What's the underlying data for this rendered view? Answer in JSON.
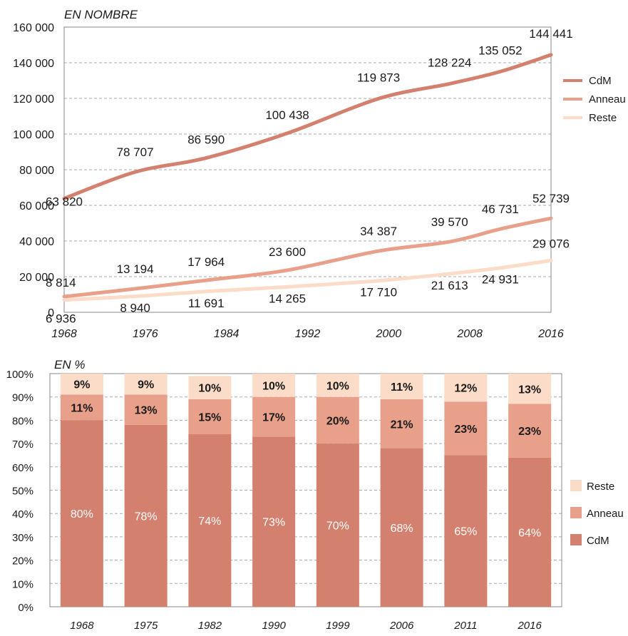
{
  "colors": {
    "cdm": "#D4806F",
    "anneau": "#E9A08A",
    "reste": "#FBDCC9",
    "grid": "#aaaaaa",
    "axis": "#888888"
  },
  "chart_data": [
    {
      "type": "line",
      "title": "EN NOMBRE",
      "x": [
        "1968",
        "1976",
        "1984",
        "1992",
        "2000",
        "2008",
        "2016"
      ],
      "ylim": [
        0,
        160000
      ],
      "yticks": [
        "0",
        "20 000",
        "40 000",
        "60 000",
        "80 000",
        "100 000",
        "120 000",
        "140 000",
        "160 000"
      ],
      "grid": true,
      "legend_position": "right",
      "series": [
        {
          "name": "CdM",
          "color": "#D4806F",
          "points": [
            [
              1968,
              63820
            ],
            [
              1975,
              78707
            ],
            [
              1982,
              86590
            ],
            [
              1990,
              100438
            ],
            [
              1999,
              119873
            ],
            [
              2006,
              128224
            ],
            [
              2011,
              135052
            ],
            [
              2016,
              144441
            ]
          ],
          "labels": [
            "63 820",
            "78 707",
            "86 590",
            "100 438",
            "119 873",
            "128 224",
            "135 052",
            "144 441"
          ]
        },
        {
          "name": "Anneau",
          "color": "#E9A08A",
          "points": [
            [
              1968,
              8814
            ],
            [
              1975,
              13194
            ],
            [
              1982,
              17964
            ],
            [
              1990,
              23600
            ],
            [
              1999,
              34387
            ],
            [
              2006,
              39570
            ],
            [
              2011,
              46731
            ],
            [
              2016,
              52739
            ]
          ],
          "labels": [
            "8 814",
            "13 194",
            "17 964",
            "23 600",
            "34 387",
            "39 570",
            "46 731",
            "52 739"
          ]
        },
        {
          "name": "Reste",
          "color": "#FBDCC9",
          "points": [
            [
              1968,
              6936
            ],
            [
              1975,
              8940
            ],
            [
              1982,
              11691
            ],
            [
              1990,
              14265
            ],
            [
              1999,
              17710
            ],
            [
              2006,
              21613
            ],
            [
              2011,
              24931
            ],
            [
              2016,
              29076
            ]
          ],
          "labels": [
            "6 936",
            "8 940",
            "11 691",
            "14 265",
            "17 710",
            "21 613",
            "24 931",
            "29 076"
          ]
        }
      ]
    },
    {
      "type": "bar",
      "stacked": true,
      "title": "EN %",
      "categories": [
        "1968",
        "1975",
        "1982",
        "1990",
        "1999",
        "2006",
        "2011",
        "2016"
      ],
      "ylim": [
        0,
        100
      ],
      "yticks": [
        "0%",
        "10%",
        "20%",
        "30%",
        "40%",
        "50%",
        "60%",
        "70%",
        "80%",
        "90%",
        "100%"
      ],
      "grid": true,
      "legend_position": "right",
      "series": [
        {
          "name": "CdM",
          "color": "#D4806F",
          "values": [
            80,
            78,
            74,
            73,
            70,
            68,
            65,
            64
          ],
          "labels": [
            "80%",
            "78%",
            "74%",
            "73%",
            "70%",
            "68%",
            "65%",
            "64%"
          ]
        },
        {
          "name": "Anneau",
          "color": "#E9A08A",
          "values": [
            11,
            13,
            15,
            17,
            20,
            21,
            23,
            23
          ],
          "labels": [
            "11%",
            "13%",
            "15%",
            "17%",
            "20%",
            "21%",
            "23%",
            "23%"
          ]
        },
        {
          "name": "Reste",
          "color": "#FBDCC9",
          "values": [
            9,
            9,
            10,
            10,
            10,
            11,
            12,
            13
          ],
          "labels": [
            "9%",
            "9%",
            "10%",
            "10%",
            "10%",
            "11%",
            "12%",
            "13%"
          ]
        }
      ]
    }
  ]
}
